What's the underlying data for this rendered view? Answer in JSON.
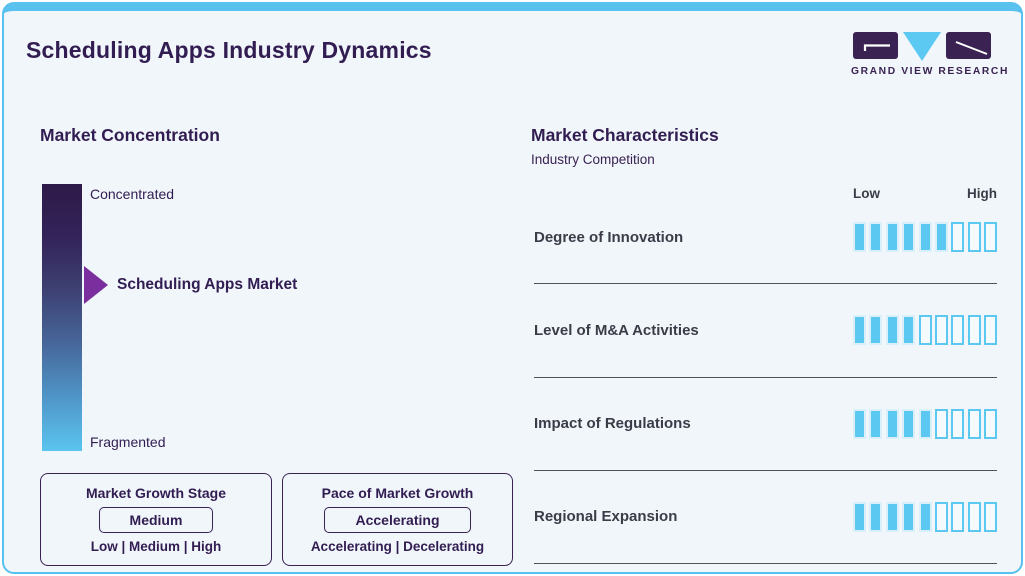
{
  "header": {
    "title": "Scheduling Apps Industry Dynamics",
    "logo": {
      "brand": "GRAND VIEW RESEARCH"
    }
  },
  "market_concentration": {
    "heading": "Market Concentration",
    "top_label": "Concentrated",
    "bottom_label": "Fragmented",
    "pointer_label": "Scheduling Apps Market"
  },
  "growth_stage": {
    "title": "Market Growth Stage",
    "value": "Medium",
    "options": "Low | Medium | High"
  },
  "growth_pace": {
    "title": "Pace of Market Growth",
    "value": "Accelerating",
    "options": "Accelerating | Decelerating"
  },
  "characteristics": {
    "heading": "Market Characteristics",
    "subtitle": "Industry Competition",
    "low_label": "Low",
    "high_label": "High",
    "rows": [
      {
        "label": "Degree of Innovation",
        "filled": 6,
        "total": 9
      },
      {
        "label": "Level of M&A Activities",
        "filled": 4,
        "total": 9
      },
      {
        "label": "Impact of Regulations",
        "filled": 5,
        "total": 9
      },
      {
        "label": "Regional Expansion",
        "filled": 5,
        "total": 9
      }
    ]
  },
  "chart_data": {
    "type": "bar",
    "title": "Market Characteristics — Industry Competition",
    "categories": [
      "Degree of Innovation",
      "Level of M&A Activities",
      "Impact of Regulations",
      "Regional Expansion"
    ],
    "values": [
      6,
      4,
      5,
      5
    ],
    "value_scale": {
      "min": 0,
      "max": 9,
      "low_label": "Low",
      "high_label": "High"
    },
    "concentration_gauge": {
      "axis_top": "Concentrated",
      "axis_bottom": "Fragmented",
      "marker": "Scheduling Apps Market",
      "marker_position_pct_from_top": 38
    },
    "market_growth_stage": "Medium",
    "pace_of_market_growth": "Accelerating"
  },
  "colors": {
    "accent_blue": "#58C1EE",
    "segment_blue": "#5BC8F1",
    "heading_purple": "#321D52",
    "logo_purple": "#3A2353",
    "arrow_purple": "#7B2F9E",
    "text_dark": "#3C3C49",
    "card_background": "#F0F6FA"
  }
}
